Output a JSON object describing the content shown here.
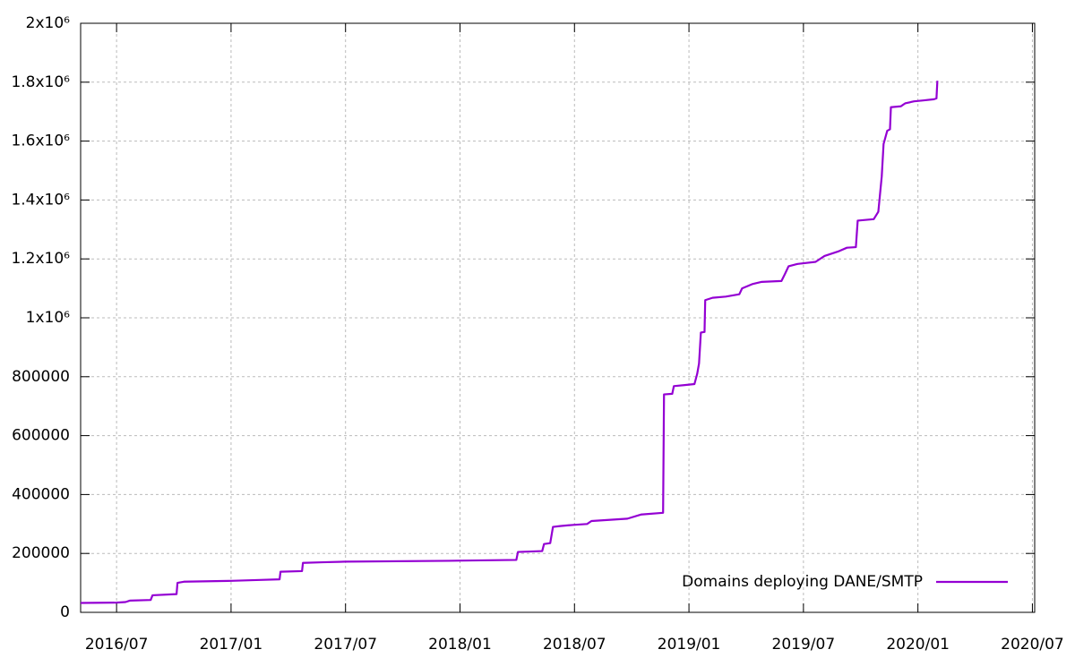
{
  "chart_data": {
    "type": "line",
    "x": [
      2016.343,
      2016.5,
      2016.539,
      2016.559,
      2016.649,
      2016.657,
      2016.762,
      2016.766,
      2016.794,
      2017.001,
      2017.126,
      2017.212,
      2017.216,
      2017.31,
      2017.314,
      2017.4,
      2017.498,
      2017.948,
      2018.246,
      2018.253,
      2018.359,
      2018.367,
      2018.394,
      2018.406,
      2018.437,
      2018.496,
      2018.555,
      2018.574,
      2018.731,
      2018.79,
      2018.887,
      2018.891,
      2018.927,
      2018.934,
      2019.024,
      2019.036,
      2019.044,
      2019.052,
      2019.068,
      2019.071,
      2019.103,
      2019.161,
      2019.22,
      2019.232,
      2019.279,
      2019.318,
      2019.404,
      2019.42,
      2019.435,
      2019.475,
      2019.553,
      2019.592,
      2019.651,
      2019.69,
      2019.729,
      2019.737,
      2019.807,
      2019.827,
      2019.842,
      2019.85,
      2019.866,
      2019.878,
      2019.882,
      2019.925,
      2019.944,
      2019.983,
      2020.023,
      2020.07,
      2020.081,
      2020.085
    ],
    "series": [
      {
        "name": "Domains deploying DANE/SMTP",
        "color": "#9400d3",
        "values": [
          32000,
          33000,
          35000,
          40000,
          42000,
          58000,
          62000,
          100000,
          104000,
          107000,
          110000,
          112000,
          138000,
          140000,
          168000,
          170000,
          172000,
          175000,
          178000,
          205000,
          208000,
          232000,
          235000,
          290000,
          293000,
          297000,
          300000,
          310000,
          318000,
          332000,
          338000,
          740000,
          742000,
          768000,
          775000,
          810000,
          845000,
          950000,
          952000,
          1060000,
          1068000,
          1072000,
          1080000,
          1100000,
          1115000,
          1122000,
          1125000,
          1150000,
          1175000,
          1183000,
          1190000,
          1210000,
          1225000,
          1238000,
          1240000,
          1330000,
          1335000,
          1360000,
          1480000,
          1590000,
          1635000,
          1640000,
          1715000,
          1718000,
          1728000,
          1735000,
          1738000,
          1742000,
          1745000,
          1805000
        ]
      }
    ],
    "xlim": [
      2016.343,
      2020.51
    ],
    "xticks": [
      {
        "value": 2016.5,
        "label": "2016/07"
      },
      {
        "value": 2017.0,
        "label": "2017/01"
      },
      {
        "value": 2017.5,
        "label": "2017/07"
      },
      {
        "value": 2018.0,
        "label": "2018/01"
      },
      {
        "value": 2018.5,
        "label": "2018/07"
      },
      {
        "value": 2019.0,
        "label": "2019/01"
      },
      {
        "value": 2019.5,
        "label": "2019/07"
      },
      {
        "value": 2020.0,
        "label": "2020/01"
      },
      {
        "value": 2020.5,
        "label": "2020/07"
      }
    ],
    "ylim": [
      0,
      2000000
    ],
    "yticks": [
      0,
      200000,
      400000,
      600000,
      800000,
      {
        "value": 1000000,
        "label": "1x10⁶"
      },
      {
        "value": 1200000,
        "label": "1.2x10⁶"
      },
      {
        "value": 1400000,
        "label": "1.4x10⁶"
      },
      {
        "value": 1600000,
        "label": "1.6x10⁶"
      },
      {
        "value": 1800000,
        "label": "1.8x10⁶"
      },
      {
        "value": 2000000,
        "label": "2x10⁶"
      }
    ],
    "grid": true,
    "legend": "bottom right"
  }
}
